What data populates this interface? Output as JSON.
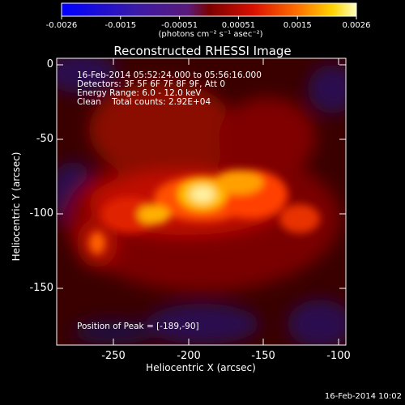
{
  "colorbar": {
    "ticks": [
      "-0.0026",
      "-0.0015",
      "-0.00051",
      "0.00051",
      "0.0015",
      "0.0026"
    ],
    "units": "(photons cm⁻² s⁻¹ asec⁻²)",
    "colors": [
      "#0000ff",
      "#3a1aa8",
      "#5a1a7a",
      "#7a0000",
      "#d81000",
      "#ff7000",
      "#ffd400",
      "#ffffc0"
    ]
  },
  "title": "Reconstructed RHESSI Image",
  "annotations": {
    "time_range": "16-Feb-2014 05:52:24.000 to 05:56:16.000",
    "detectors": "Detectors: 3F 5F 6F 7F 8F 9F, Att 0",
    "energy": "Energy Range: 6.0 - 12.0 keV",
    "clean": "Clean    Total counts: 2.92E+04",
    "peak": "Position of Peak = [-189,-90]"
  },
  "axes": {
    "xlabel": "Heliocentric X (arcsec)",
    "ylabel": "Heliocentric Y (arcsec)",
    "xticks": [
      "-250",
      "-200",
      "-150",
      "-100"
    ],
    "yticks": [
      "0",
      "-50",
      "-100",
      "-150"
    ],
    "xlim": [
      -286,
      -93
    ],
    "ylim": [
      -190,
      3
    ]
  },
  "peak_position": [
    -189,
    -90
  ],
  "timestamp": "16-Feb-2014 10:02"
}
